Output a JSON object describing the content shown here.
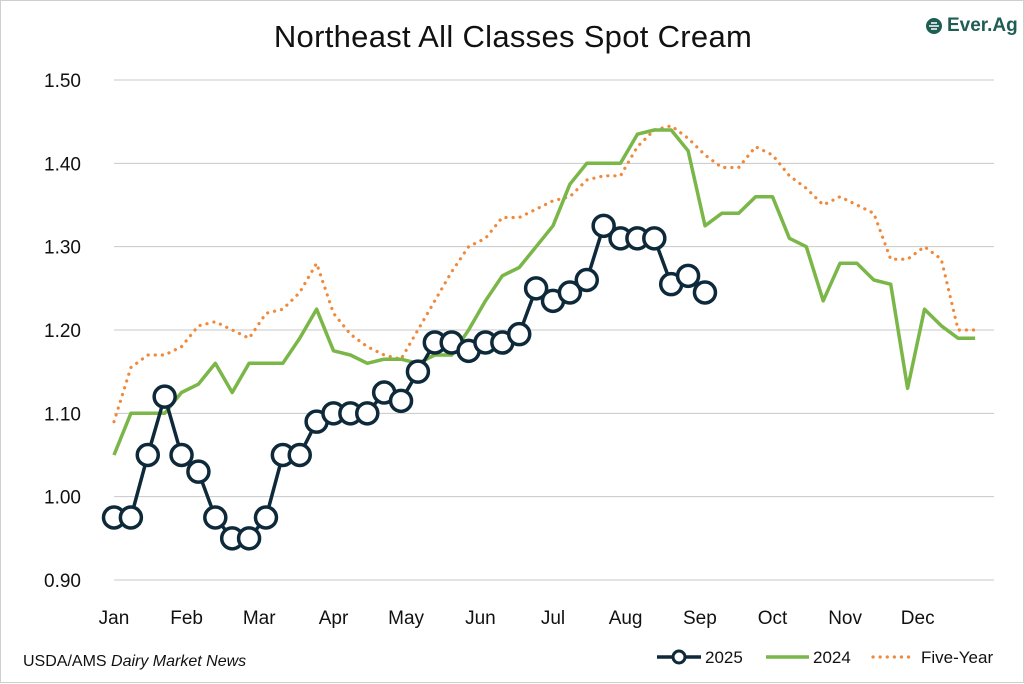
{
  "page": {
    "title": "Northeast All Classes Spot Cream",
    "logo_text": "Ever.Ag",
    "source_prefix": "USDA/AMS ",
    "source_italic": "Dairy Market News"
  },
  "colors": {
    "series_2025": "#0e2a3a",
    "series_2024": "#7ab648",
    "series_five_year": "#ef8a3c",
    "grid": "#c8c8c8",
    "logo": "#1f5e54"
  },
  "chart_data": {
    "type": "line",
    "title": "Northeast All Classes Spot Cream",
    "xlabel": "",
    "ylabel": "",
    "ylim": [
      0.9,
      1.5
    ],
    "yticks": [
      "0.90",
      "1.00",
      "1.10",
      "1.20",
      "1.30",
      "1.40",
      "1.50"
    ],
    "ytick_values": [
      0.9,
      1.0,
      1.1,
      1.2,
      1.3,
      1.4,
      1.5
    ],
    "xlim": [
      0,
      52
    ],
    "month_labels": [
      "Jan",
      "Feb",
      "Mar",
      "Apr",
      "May",
      "Jun",
      "Jul",
      "Aug",
      "Sep",
      "Oct",
      "Nov",
      "Dec"
    ],
    "month_positions": [
      0,
      4.3,
      8.6,
      13,
      17.3,
      21.7,
      26,
      30.3,
      34.7,
      39,
      43.3,
      47.6
    ],
    "grid": true,
    "legend_position": "bottom-right",
    "series": [
      {
        "name": "2025",
        "style": "line-with-circle-markers",
        "x": [
          0,
          1,
          2,
          3,
          4,
          5,
          6,
          7,
          8,
          9,
          10,
          11,
          12,
          13,
          14,
          15,
          16,
          17,
          18,
          19,
          20,
          21,
          22,
          23,
          24,
          25,
          26,
          27,
          28,
          29,
          30,
          31,
          32,
          33,
          34,
          35
        ],
        "values": [
          0.975,
          0.975,
          1.05,
          1.12,
          1.05,
          1.03,
          0.975,
          0.95,
          0.95,
          0.975,
          1.05,
          1.05,
          1.09,
          1.1,
          1.1,
          1.1,
          1.125,
          1.115,
          1.15,
          1.185,
          1.185,
          1.175,
          1.185,
          1.185,
          1.195,
          1.25,
          1.235,
          1.245,
          1.26,
          1.325,
          1.31,
          1.31,
          1.31,
          1.255,
          1.265,
          1.245
        ]
      },
      {
        "name": "2024",
        "style": "solid",
        "x": [
          0,
          1,
          2,
          3,
          4,
          5,
          6,
          7,
          8,
          9,
          10,
          11,
          12,
          13,
          14,
          15,
          16,
          17,
          18,
          19,
          20,
          21,
          22,
          23,
          24,
          25,
          26,
          27,
          28,
          29,
          30,
          31,
          32,
          33,
          34,
          35,
          36,
          37,
          38,
          39,
          40,
          41,
          42,
          43,
          44,
          45,
          46,
          47,
          48,
          49,
          50,
          51
        ],
        "values": [
          1.05,
          1.1,
          1.1,
          1.1,
          1.125,
          1.135,
          1.16,
          1.125,
          1.16,
          1.16,
          1.16,
          1.19,
          1.225,
          1.175,
          1.17,
          1.16,
          1.165,
          1.165,
          1.16,
          1.17,
          1.17,
          1.2,
          1.235,
          1.265,
          1.275,
          1.3,
          1.325,
          1.375,
          1.4,
          1.4,
          1.4,
          1.435,
          1.44,
          1.44,
          1.415,
          1.325,
          1.34,
          1.34,
          1.36,
          1.36,
          1.31,
          1.3,
          1.235,
          1.28,
          1.28,
          1.26,
          1.255,
          1.13,
          1.225,
          1.205,
          1.19,
          1.19
        ]
      },
      {
        "name": "Five-Year",
        "style": "dotted",
        "x": [
          0,
          1,
          2,
          3,
          4,
          5,
          6,
          7,
          8,
          9,
          10,
          11,
          12,
          13,
          14,
          15,
          16,
          17,
          18,
          19,
          20,
          21,
          22,
          23,
          24,
          25,
          26,
          27,
          28,
          29,
          30,
          31,
          32,
          33,
          34,
          35,
          36,
          37,
          38,
          39,
          40,
          41,
          42,
          43,
          44,
          45,
          46,
          47,
          48,
          49,
          50,
          51
        ],
        "values": [
          1.09,
          1.155,
          1.17,
          1.17,
          1.18,
          1.205,
          1.21,
          1.2,
          1.19,
          1.22,
          1.225,
          1.245,
          1.28,
          1.22,
          1.195,
          1.18,
          1.17,
          1.165,
          1.2,
          1.235,
          1.27,
          1.3,
          1.31,
          1.335,
          1.335,
          1.345,
          1.355,
          1.36,
          1.38,
          1.385,
          1.385,
          1.42,
          1.44,
          1.445,
          1.43,
          1.41,
          1.395,
          1.395,
          1.42,
          1.41,
          1.385,
          1.37,
          1.35,
          1.36,
          1.35,
          1.34,
          1.285,
          1.285,
          1.3,
          1.285,
          1.2,
          1.2
        ]
      }
    ]
  }
}
